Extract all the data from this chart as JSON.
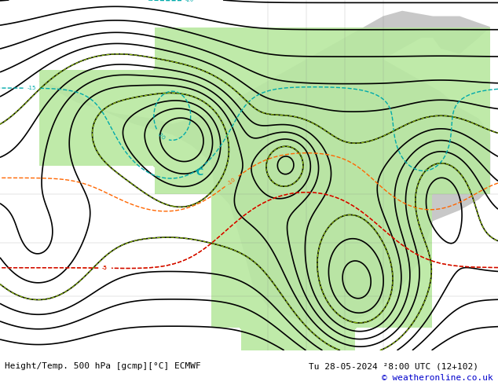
{
  "title_left": "Height/Temp. 500 hPa [gcmp][°C] ECMWF",
  "title_right": "Tu 28-05-2024 ²8:00 UTC (12+102)",
  "copyright": "© weatheronline.co.uk",
  "background_color": "#d8d8d8",
  "land_color": "#c8c8c8",
  "green_fill_color": "#b8e8a0",
  "fig_width": 6.34,
  "fig_height": 4.9,
  "dpi": 100,
  "z500_contour_color": "#000000",
  "z500_label_color": "#000000",
  "temp_warm_color": "#ff6600",
  "temp_cold_color": "#00aaaa",
  "temp_neg_color": "#cc0000",
  "green_contour_color": "#88bb00",
  "border_color": "#000000",
  "text_color_left": "#000000",
  "text_color_right": "#000000",
  "copyright_color": "#0000cc",
  "bottom_bar_color": "#ffffff",
  "font_size_label": 7,
  "font_size_title": 8,
  "font_size_copyright": 8
}
